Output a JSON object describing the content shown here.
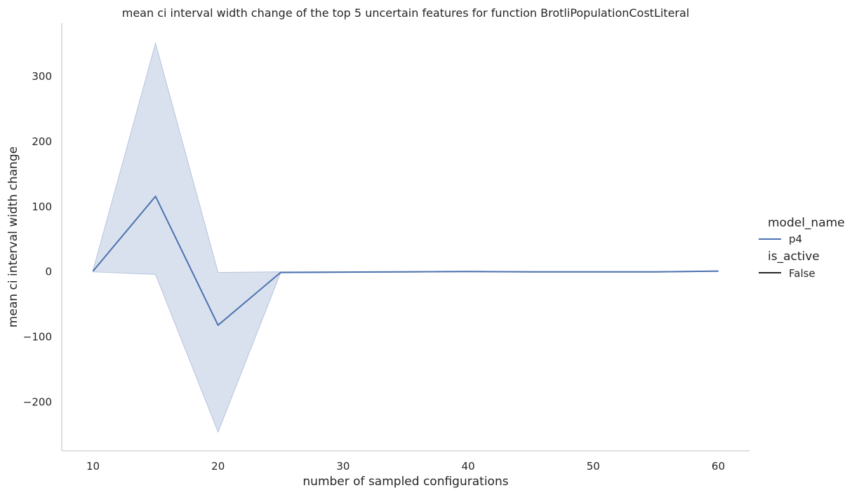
{
  "chart_data": {
    "type": "line",
    "title": "mean ci interval width change of the top 5 uncertain features for function BrotliPopulationCostLiteral",
    "xlabel": "number of sampled configurations",
    "ylabel": "mean ci interval width change",
    "xlim": [
      7.5,
      62.5
    ],
    "ylim": [
      -275,
      382
    ],
    "xticks": [
      10,
      20,
      30,
      40,
      50,
      60
    ],
    "xtick_labels": [
      "10",
      "20",
      "30",
      "40",
      "50",
      "60"
    ],
    "yticks": [
      -200,
      -100,
      0,
      100,
      200,
      300
    ],
    "ytick_labels": [
      "−200",
      "−100",
      "0",
      "100",
      "200",
      "300"
    ],
    "grid": false,
    "legend_position": "right",
    "legend": {
      "title1": "model_name",
      "entry1": "p4",
      "title2": "is_active",
      "entry2": "False"
    },
    "series": [
      {
        "name": "p4",
        "color": "#4c72b0",
        "band_color": "#b5c4de",
        "x": [
          10,
          15,
          20,
          25,
          30,
          35,
          40,
          45,
          50,
          55,
          60
        ],
        "y": [
          1,
          116,
          -82,
          -1,
          -0.5,
          0,
          0.5,
          0,
          0,
          0,
          1
        ],
        "lower": [
          0,
          -4,
          -246,
          -1.5,
          -1,
          -0.5,
          0,
          -0.5,
          -0.5,
          -0.5,
          0.5
        ],
        "upper": [
          2,
          351,
          -1,
          0,
          0,
          0.5,
          1,
          0.5,
          0.5,
          0.5,
          1.5
        ]
      }
    ]
  }
}
